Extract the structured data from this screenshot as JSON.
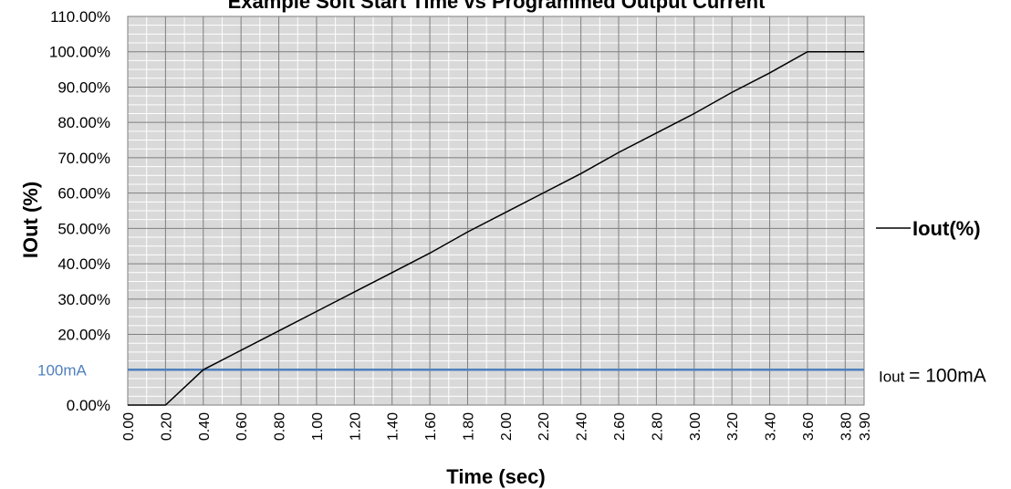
{
  "chart_data": {
    "type": "line",
    "title": "Example Soft Start Time vs Programmed Output Current",
    "xlabel": "Time (sec)",
    "ylabel": "IOut (%)",
    "xlim": [
      0,
      3.9
    ],
    "ylim": [
      0,
      1.1
    ],
    "grid": true,
    "legend_position": "right",
    "x_ticks": [
      "0.00",
      "0.20",
      "0.40",
      "0.60",
      "0.80",
      "1.00",
      "1.20",
      "1.40",
      "1.60",
      "1.80",
      "2.00",
      "2.20",
      "2.40",
      "2.60",
      "2.80",
      "3.00",
      "3.20",
      "3.40",
      "3.60",
      "3.80",
      "3.90"
    ],
    "y_ticks": [
      "0.00%",
      "10.00%",
      "20.00%",
      "30.00%",
      "40.00%",
      "50.00%",
      "60.00%",
      "70.00%",
      "80.00%",
      "90.00%",
      "100.00%",
      "110.00%"
    ],
    "series": [
      {
        "name": "Iout(%)",
        "color": "#000000",
        "x": [
          0.0,
          0.2,
          0.4,
          0.6,
          0.8,
          1.0,
          1.2,
          1.4,
          1.6,
          1.8,
          2.0,
          2.2,
          2.4,
          2.6,
          2.8,
          3.0,
          3.2,
          3.4,
          3.6,
          3.8,
          3.9
        ],
        "y": [
          0.0,
          0.0,
          0.1,
          0.155,
          0.21,
          0.265,
          0.32,
          0.375,
          0.43,
          0.49,
          0.545,
          0.6,
          0.655,
          0.715,
          0.77,
          0.825,
          0.885,
          0.94,
          1.0,
          1.0,
          1.0
        ]
      }
    ],
    "reference_line": {
      "label": "100mA",
      "y": 0.1,
      "color": "#4f81bd",
      "annotation_prefix": "Iout",
      "annotation_suffix": "= 100mA"
    }
  }
}
